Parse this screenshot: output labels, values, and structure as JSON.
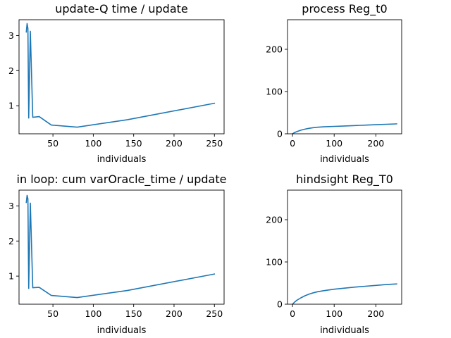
{
  "chart_data": [
    {
      "type": "line",
      "title": "update-Q time / update",
      "xlabel": "individuals",
      "ylabel": "",
      "xlim": [
        8,
        262
      ],
      "ylim": [
        0.2,
        3.45
      ],
      "xticks": [
        50,
        100,
        150,
        200,
        250
      ],
      "xtick_labels": [
        "50",
        "100",
        "150",
        "200",
        "250"
      ],
      "yticks": [
        1,
        2,
        3
      ],
      "ytick_labels": [
        "1",
        "2",
        "3"
      ],
      "color": "#1f77b4",
      "series": [
        {
          "x": [
            17,
            18,
            19,
            20,
            22,
            25,
            33,
            48,
            80,
            142,
            250
          ],
          "y": [
            3.1,
            3.34,
            3.2,
            0.65,
            3.12,
            0.67,
            0.69,
            0.45,
            0.39,
            0.6,
            1.07
          ]
        }
      ]
    },
    {
      "type": "line",
      "title": "process Reg_t0",
      "xlabel": "individuals",
      "ylabel": "",
      "xlim": [
        -12,
        262
      ],
      "ylim": [
        0,
        270
      ],
      "xticks": [
        0,
        100,
        200
      ],
      "xtick_labels": [
        "0",
        "100",
        "200"
      ],
      "yticks": [
        0,
        100,
        200
      ],
      "ytick_labels": [
        "0",
        "100",
        "200"
      ],
      "color": "#1f77b4",
      "series": [
        {
          "x": [
            0,
            5,
            10,
            20,
            30,
            40,
            50,
            60,
            75,
            100,
            125,
            150,
            175,
            200,
            225,
            250
          ],
          "y": [
            0,
            3,
            5,
            8.5,
            11,
            13,
            14.5,
            15.5,
            16.5,
            17.5,
            18.5,
            19.5,
            20.5,
            21.5,
            22.5,
            23.5
          ]
        }
      ]
    },
    {
      "type": "line",
      "title": "in loop: cum varOracle_time / update",
      "xlabel": "individuals",
      "ylabel": "",
      "xlim": [
        8,
        262
      ],
      "ylim": [
        0.2,
        3.45
      ],
      "xticks": [
        50,
        100,
        150,
        200,
        250
      ],
      "xtick_labels": [
        "50",
        "100",
        "150",
        "200",
        "250"
      ],
      "yticks": [
        1,
        2,
        3
      ],
      "ytick_labels": [
        "1",
        "2",
        "3"
      ],
      "color": "#1f77b4",
      "series": [
        {
          "x": [
            17,
            18,
            19,
            20,
            22,
            25,
            33,
            48,
            80,
            142,
            250
          ],
          "y": [
            3.1,
            3.3,
            3.2,
            0.65,
            3.08,
            0.67,
            0.68,
            0.45,
            0.39,
            0.59,
            1.06
          ]
        }
      ]
    },
    {
      "type": "line",
      "title": "hindsight Reg_T0",
      "xlabel": "individuals",
      "ylabel": "",
      "xlim": [
        -12,
        262
      ],
      "ylim": [
        0,
        270
      ],
      "xticks": [
        0,
        100,
        200
      ],
      "xtick_labels": [
        "0",
        "100",
        "200"
      ],
      "yticks": [
        0,
        100,
        200
      ],
      "ytick_labels": [
        "0",
        "100",
        "200"
      ],
      "color": "#1f77b4",
      "series": [
        {
          "x": [
            0,
            5,
            10,
            20,
            30,
            40,
            50,
            60,
            75,
            100,
            125,
            150,
            175,
            200,
            225,
            250
          ],
          "y": [
            0,
            5,
            9,
            15,
            20,
            24,
            27,
            29.5,
            32,
            35.5,
            38,
            40.5,
            42.5,
            44.5,
            46.5,
            48
          ]
        }
      ]
    }
  ]
}
